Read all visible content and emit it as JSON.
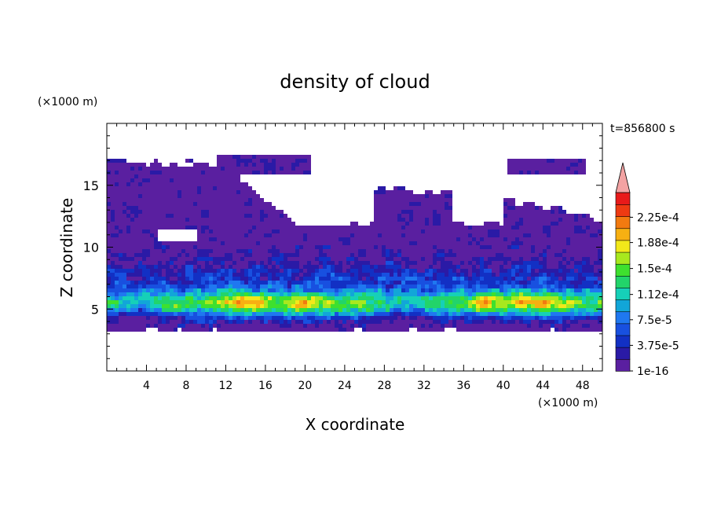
{
  "chart_data": {
    "type": "heatmap",
    "title": "density of cloud",
    "time_label": "t=856800 s",
    "xlabel": "X coordinate",
    "ylabel": "Z coordinate",
    "x_unit": "(×1000 m)",
    "y_unit": "(×1000 m)",
    "xlim": [
      0,
      50
    ],
    "ylim": [
      0,
      20
    ],
    "x_ticks": [
      4,
      8,
      12,
      16,
      20,
      24,
      28,
      32,
      36,
      40,
      44,
      48
    ],
    "y_ticks": [
      5,
      10,
      15
    ],
    "colorbar": {
      "min_label": "1e-16",
      "labels": [
        "1e-16",
        "3.75e-5",
        "7.5e-5",
        "1.12e-4",
        "1.5e-4",
        "1.88e-4",
        "2.25e-4"
      ],
      "levels": [
        0,
        1.875e-05,
        3.75e-05,
        5.625e-05,
        7.5e-05,
        9.375e-05,
        0.000112,
        0.00013125,
        0.00015,
        0.00016875,
        0.000188,
        0.00020625,
        0.000225,
        0.00024375
      ],
      "colors": [
        "#5a1fa0",
        "#2a1aa6",
        "#1230c4",
        "#1850e0",
        "#1f78f0",
        "#12a6d8",
        "#16d0b8",
        "#22d46a",
        "#3ee02e",
        "#a8e81e",
        "#f2e81a",
        "#f7b012",
        "#f27a10",
        "#ee3a12",
        "#e81a1a"
      ],
      "extend_color": "#f3a3a3"
    },
    "field_description": {
      "cloud_base_km": 3.3,
      "bulk_top_km": 10,
      "peak_band_km": [
        4.5,
        6.5
      ],
      "upper_layer_tops_km": 17,
      "hotspots_km": [
        [
          13.5,
          5.6
        ],
        [
          20,
          5.3
        ],
        [
          43.5,
          5.5
        ],
        [
          38.5,
          5.6
        ]
      ]
    }
  }
}
